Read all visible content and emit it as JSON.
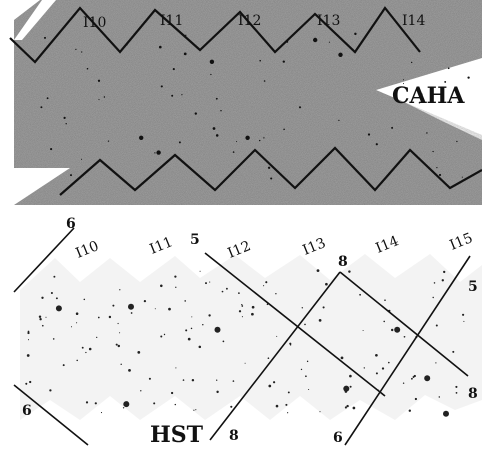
{
  "colors": {
    "caha_background": "#a9a9a9",
    "hst_background": "#f3f3f3",
    "ink": "#111111",
    "page": "#ffffff"
  },
  "caha": {
    "title": "CAHA",
    "fields": [
      "I10",
      "I11",
      "I12",
      "I13",
      "I14"
    ]
  },
  "hst": {
    "title": "HST",
    "fields": [
      "I10",
      "I11",
      "I12",
      "I13",
      "I14",
      "I15"
    ],
    "grid_labels": [
      "6",
      "5",
      "8",
      "5",
      "6",
      "8",
      "6",
      "8"
    ]
  }
}
